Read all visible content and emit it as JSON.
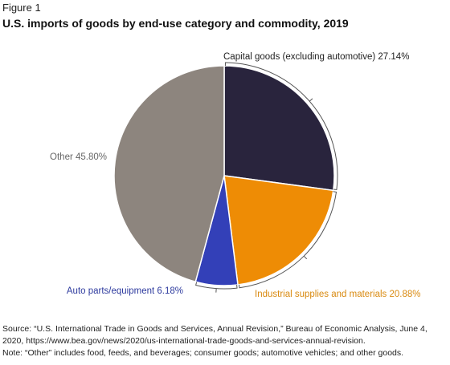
{
  "figure_label": "Figure 1",
  "title": "U.S. imports of goods by end-use category and commodity, 2019",
  "chart_data": {
    "type": "pie",
    "start_angle_deg": 0,
    "direction": "clockwise",
    "slices": [
      {
        "label": "Capital goods (excluding automotive)",
        "value": 27.14,
        "display": "Capital goods (excluding automotive) 27.14%",
        "color": "#29243d",
        "label_color": "#222222"
      },
      {
        "label": "Industrial supplies and materials",
        "value": 20.88,
        "display": "Industrial supplies and materials 20.88%",
        "color": "#ee8c05",
        "label_color": "#d98a10"
      },
      {
        "label": "Auto parts/equipment",
        "value": 6.18,
        "display": "Auto parts/equipment 6.18%",
        "color": "#3340b8",
        "label_color": "#2d3a9e"
      },
      {
        "label": "Other",
        "value": 45.8,
        "display": "Other 45.80%",
        "color": "#8d857e",
        "label_color": "#666666"
      }
    ]
  },
  "source_text": "Source: “U.S. International Trade in Goods and Services, Annual Revision,” Bureau of Economic Analysis, June 4,",
  "source_text_2": "2020, https://www.bea.gov/news/2020/us-international-trade-goods-and-services-annual-revision.",
  "note_text": "Note: “Other” includes food, feeds, and beverages; consumer goods; automotive vehicles; and other goods."
}
